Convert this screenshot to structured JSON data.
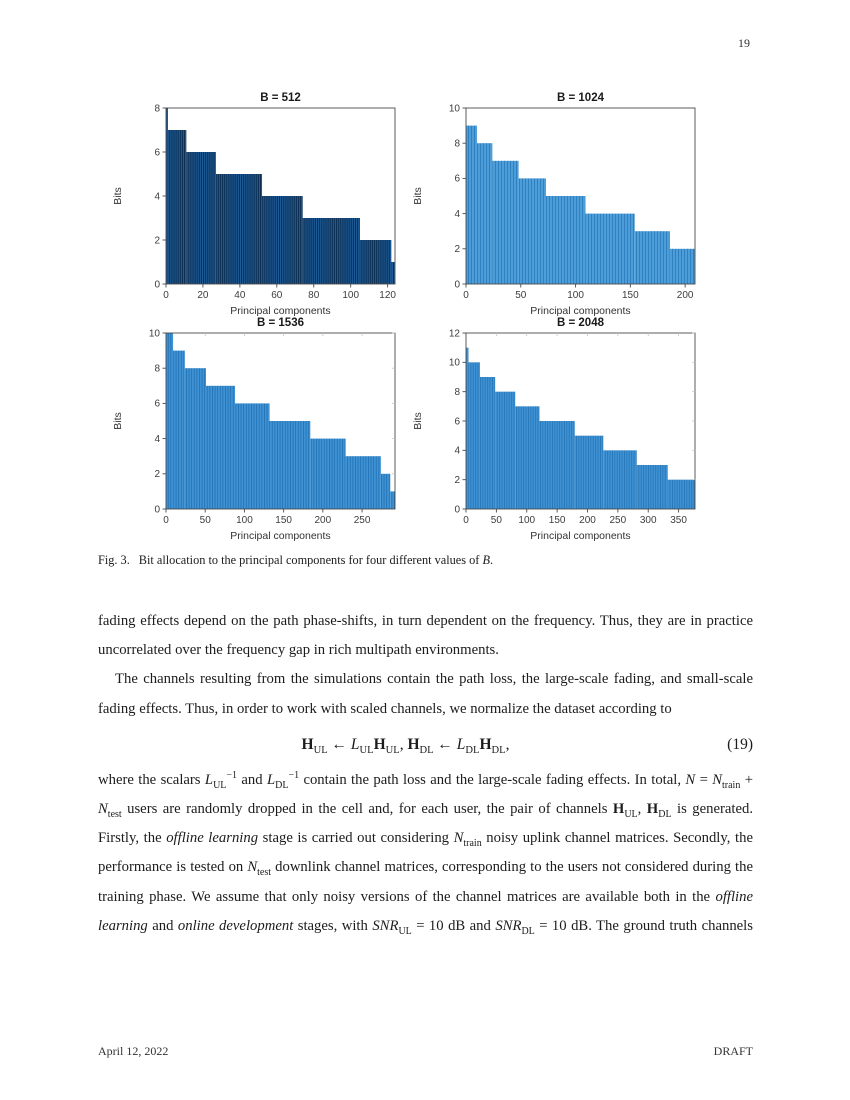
{
  "page": {
    "number": "19",
    "footer_left": "April 12, 2022",
    "footer_right": "DRAFT"
  },
  "figure": {
    "caption_prefix": "Fig. 3.",
    "caption_runs": [
      {
        "s": "n",
        "t": "Bit allocation to the principal components for four different values of "
      },
      {
        "s": "i",
        "t": "B"
      },
      {
        "s": "n",
        "t": "."
      }
    ]
  },
  "chart_data": [
    {
      "type": "bar",
      "title": "B = 512",
      "xlabel": "Principal components",
      "ylabel": "Bits",
      "xlim": [
        0,
        124
      ],
      "ylim": [
        0,
        8
      ],
      "xticks": [
        0,
        20,
        40,
        60,
        80,
        100,
        120
      ],
      "yticks": [
        0,
        2,
        4,
        6,
        8
      ],
      "bar_color": "#1E5C99",
      "stripe_color": "#0B2C4E",
      "stripe_period": 1.9,
      "stripe_width": 0.9,
      "mirror_ticks": false,
      "steps": [
        {
          "bits": 8,
          "from": 0,
          "to": 1
        },
        {
          "bits": 7,
          "from": 1,
          "to": 11
        },
        {
          "bits": 6,
          "from": 11,
          "to": 27
        },
        {
          "bits": 5,
          "from": 27,
          "to": 52
        },
        {
          "bits": 4,
          "from": 52,
          "to": 74
        },
        {
          "bits": 3,
          "from": 74,
          "to": 105
        },
        {
          "bits": 2,
          "from": 105,
          "to": 122
        },
        {
          "bits": 1,
          "from": 122,
          "to": 124
        }
      ]
    },
    {
      "type": "bar",
      "title": "B = 1024",
      "xlabel": "Principal components",
      "ylabel": "Bits",
      "xlim": [
        0,
        209
      ],
      "ylim": [
        0,
        10
      ],
      "xticks": [
        0,
        50,
        100,
        150,
        200
      ],
      "yticks": [
        0,
        2,
        4,
        6,
        8,
        10
      ],
      "bar_color": "#4D9DD9",
      "stripe_color": "#2E80C0",
      "stripe_period": 3,
      "stripe_width": 1,
      "mirror_ticks": false,
      "steps": [
        {
          "bits": 9,
          "from": 0,
          "to": 10
        },
        {
          "bits": 8,
          "from": 10,
          "to": 24
        },
        {
          "bits": 7,
          "from": 24,
          "to": 48
        },
        {
          "bits": 6,
          "from": 48,
          "to": 73
        },
        {
          "bits": 5,
          "from": 73,
          "to": 109
        },
        {
          "bits": 4,
          "from": 109,
          "to": 154
        },
        {
          "bits": 3,
          "from": 154,
          "to": 186
        },
        {
          "bits": 2,
          "from": 186,
          "to": 209
        }
      ]
    },
    {
      "type": "bar",
      "title": "B = 1536",
      "xlabel": "Principal components",
      "ylabel": "Bits",
      "xlim": [
        0,
        292
      ],
      "ylim": [
        0,
        10
      ],
      "xticks": [
        0,
        50,
        100,
        150,
        200,
        250
      ],
      "yticks": [
        0,
        2,
        4,
        6,
        8,
        10
      ],
      "bar_color": "#3F93D4",
      "stripe_color": "#2373B5",
      "stripe_period": 2.6,
      "stripe_width": 0.9,
      "mirror_ticks": true,
      "steps": [
        {
          "bits": 10,
          "from": 0,
          "to": 9
        },
        {
          "bits": 9,
          "from": 9,
          "to": 24
        },
        {
          "bits": 8,
          "from": 24,
          "to": 51
        },
        {
          "bits": 7,
          "from": 51,
          "to": 88
        },
        {
          "bits": 6,
          "from": 88,
          "to": 132
        },
        {
          "bits": 5,
          "from": 132,
          "to": 184
        },
        {
          "bits": 4,
          "from": 184,
          "to": 229
        },
        {
          "bits": 3,
          "from": 229,
          "to": 274
        },
        {
          "bits": 2,
          "from": 274,
          "to": 286
        },
        {
          "bits": 1,
          "from": 286,
          "to": 292
        }
      ]
    },
    {
      "type": "bar",
      "title": "B = 2048",
      "xlabel": "Principal components",
      "ylabel": "Bits",
      "xlim": [
        0,
        377
      ],
      "ylim": [
        0,
        12
      ],
      "xticks": [
        0,
        50,
        100,
        150,
        200,
        250,
        300,
        350
      ],
      "yticks": [
        0,
        2,
        4,
        6,
        8,
        10,
        12
      ],
      "bar_color": "#3F93D4",
      "stripe_color": "#2373B5",
      "stripe_period": 2.4,
      "stripe_width": 0.8,
      "mirror_ticks": true,
      "steps": [
        {
          "bits": 11,
          "from": 0,
          "to": 4
        },
        {
          "bits": 10,
          "from": 4,
          "to": 23
        },
        {
          "bits": 9,
          "from": 23,
          "to": 48
        },
        {
          "bits": 8,
          "from": 48,
          "to": 81
        },
        {
          "bits": 7,
          "from": 81,
          "to": 121
        },
        {
          "bits": 6,
          "from": 121,
          "to": 179
        },
        {
          "bits": 5,
          "from": 179,
          "to": 226
        },
        {
          "bits": 4,
          "from": 226,
          "to": 281
        },
        {
          "bits": 3,
          "from": 281,
          "to": 332
        },
        {
          "bits": 2,
          "from": 332,
          "to": 377
        }
      ]
    }
  ],
  "content": {
    "blocks": [
      {
        "kind": "p",
        "indent": false,
        "justify_last": false,
        "runs": [
          {
            "s": "n",
            "t": "fading effects depend on the path phase-shifts, in turn dependent on the frequency. Thus, they are in practice uncorrelated over the frequency gap in rich multipath environments."
          }
        ]
      },
      {
        "kind": "p",
        "indent": true,
        "justify_last": false,
        "runs": [
          {
            "s": "n",
            "t": "The channels resulting from the simulations contain the path loss, the large-scale fading, and small-scale fading effects. Thus, in order to work with scaled channels, we normalize the dataset according to"
          }
        ]
      },
      {
        "kind": "equation",
        "tag": "(19)",
        "runs": [
          {
            "s": "b",
            "t": "H"
          },
          {
            "s": "sub",
            "t": "UL"
          },
          {
            "s": "n",
            "t": " ← "
          },
          {
            "s": "i",
            "t": "L"
          },
          {
            "s": "sub",
            "t": "UL"
          },
          {
            "s": "b",
            "t": "H"
          },
          {
            "s": "sub",
            "t": "UL"
          },
          {
            "s": "n",
            "t": ", "
          },
          {
            "s": "b",
            "t": "H"
          },
          {
            "s": "sub",
            "t": "DL"
          },
          {
            "s": "n",
            "t": " ← "
          },
          {
            "s": "i",
            "t": "L"
          },
          {
            "s": "sub",
            "t": "DL"
          },
          {
            "s": "b",
            "t": "H"
          },
          {
            "s": "sub",
            "t": "DL"
          },
          {
            "s": "n",
            "t": ","
          }
        ]
      },
      {
        "kind": "p",
        "indent": false,
        "justify_last": true,
        "runs": [
          {
            "s": "n",
            "t": "where the scalars "
          },
          {
            "s": "i",
            "t": "L"
          },
          {
            "s": "sub",
            "t": "UL"
          },
          {
            "s": "sup",
            "t": "−1"
          },
          {
            "s": "n",
            "t": " and "
          },
          {
            "s": "i",
            "t": "L"
          },
          {
            "s": "sub",
            "t": "DL"
          },
          {
            "s": "sup",
            "t": "−1"
          },
          {
            "s": "n",
            "t": " contain the path loss and the large-scale fading effects. In total, "
          },
          {
            "s": "i",
            "t": "N"
          },
          {
            "s": "n",
            "t": " = "
          },
          {
            "s": "i",
            "t": "N"
          },
          {
            "s": "sub",
            "t": "train"
          },
          {
            "s": "n",
            "t": " + "
          },
          {
            "s": "i",
            "t": "N"
          },
          {
            "s": "sub",
            "t": "test"
          },
          {
            "s": "n",
            "t": " users are randomly dropped in the cell and, for each user, the pair of channels "
          },
          {
            "s": "b",
            "t": "H"
          },
          {
            "s": "sub",
            "t": "UL"
          },
          {
            "s": "n",
            "t": ", "
          },
          {
            "s": "b",
            "t": "H"
          },
          {
            "s": "sub",
            "t": "DL"
          },
          {
            "s": "n",
            "t": " is generated. Firstly, the "
          },
          {
            "s": "i",
            "t": "offline learning"
          },
          {
            "s": "n",
            "t": " stage is carried out considering "
          },
          {
            "s": "i",
            "t": "N"
          },
          {
            "s": "sub",
            "t": "train"
          },
          {
            "s": "n",
            "t": " noisy uplink channel matrices. Secondly, the performance is tested on "
          },
          {
            "s": "i",
            "t": "N"
          },
          {
            "s": "sub",
            "t": "test"
          },
          {
            "s": "n",
            "t": " downlink channel matrices, corresponding to the users not considered during the training phase. We assume that only noisy versions of the channel matrices are available both in the "
          },
          {
            "s": "i",
            "t": "offline learning"
          },
          {
            "s": "n",
            "t": " and "
          },
          {
            "s": "i",
            "t": "online development"
          },
          {
            "s": "n",
            "t": " stages, with "
          },
          {
            "s": "i",
            "t": "SNR"
          },
          {
            "s": "sub",
            "t": "UL"
          },
          {
            "s": "n",
            "t": " = 10 dB and "
          },
          {
            "s": "i",
            "t": "SNR"
          },
          {
            "s": "sub",
            "t": "DL"
          },
          {
            "s": "n",
            "t": " = 10 dB. The ground truth channels"
          }
        ]
      }
    ]
  }
}
